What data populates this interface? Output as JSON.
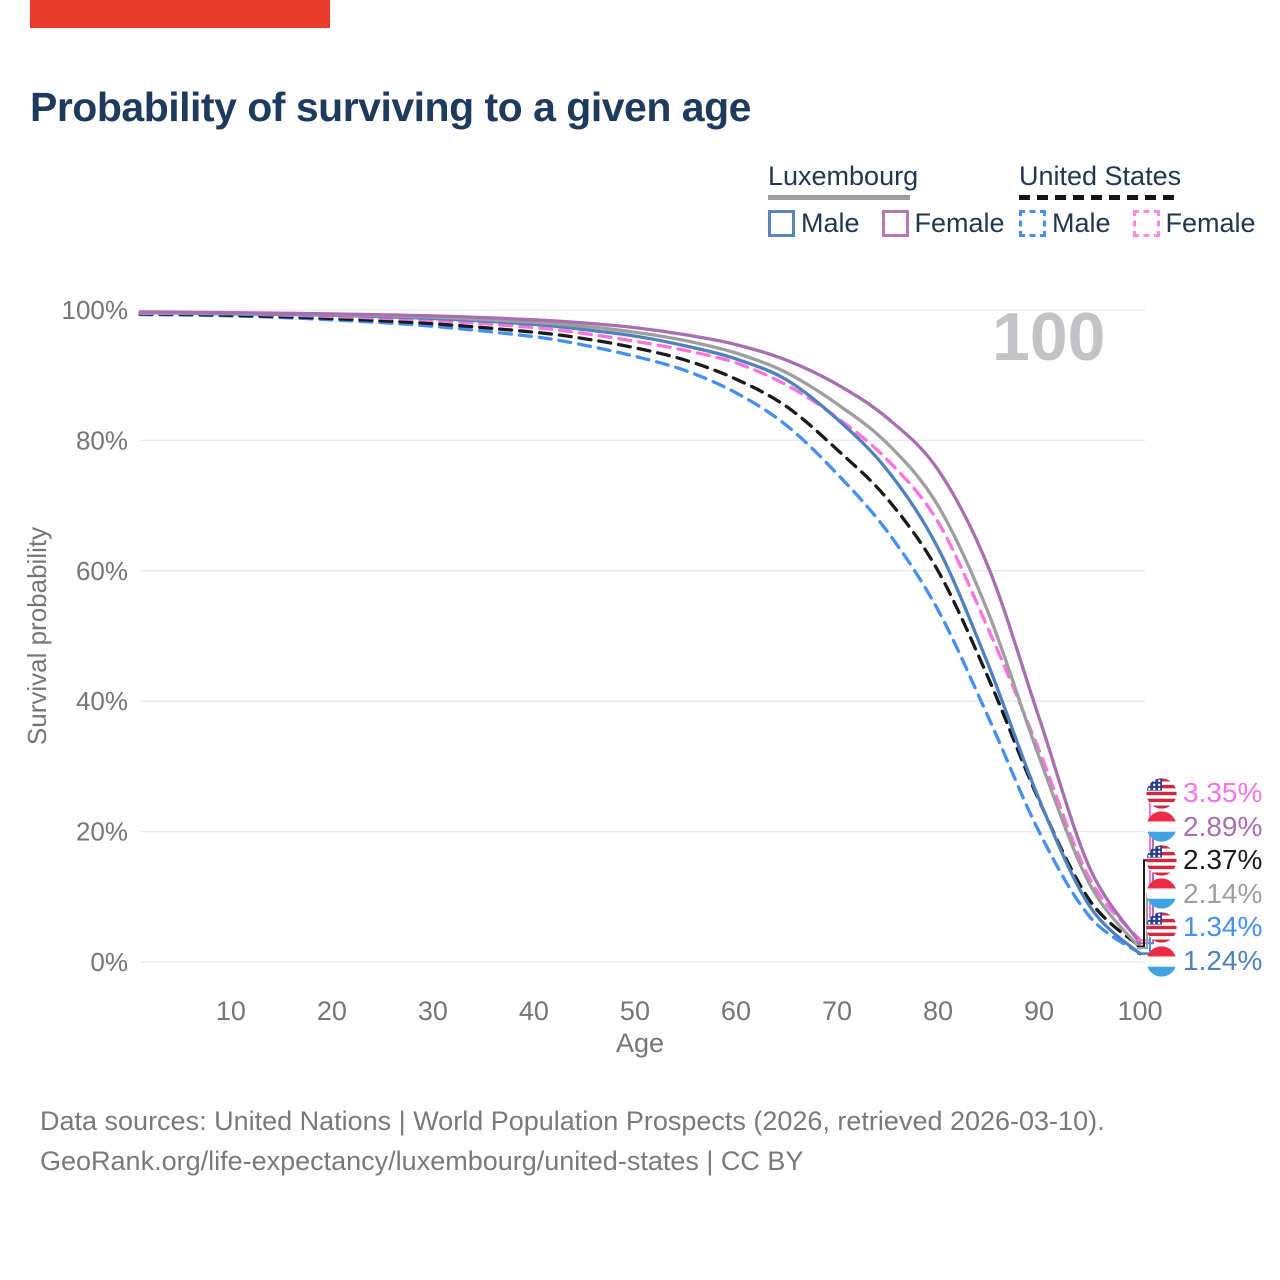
{
  "banner": {
    "color": "#e8392b"
  },
  "header": {
    "title": "Probability of surviving to a given age"
  },
  "legend": {
    "luxembourg": {
      "label": "Luxembourg",
      "male": "Male",
      "female": "Female",
      "male_color": "#4f81bd",
      "female_color": "#a76fb0",
      "total_line_color": "#9e9e9e",
      "total_line_style": "solid"
    },
    "united_states": {
      "label": "United States",
      "male": "Male",
      "female": "Female",
      "male_color": "#448ef4",
      "female_color": "#fb73e0",
      "total_line_color": "#1a1a1a",
      "total_line_style": "dashed"
    }
  },
  "watermark": "100",
  "end_labels": [
    {
      "label": "3.35%",
      "value": 3.35,
      "color": "#fb73e0",
      "flag": "us"
    },
    {
      "label": "2.89%",
      "value": 2.89,
      "color": "#a76fb0",
      "flag": "lu"
    },
    {
      "label": "2.37%",
      "value": 2.37,
      "color": "#1a1a1a",
      "flag": "us"
    },
    {
      "label": "2.14%",
      "value": 2.14,
      "color": "#9e9e9e",
      "flag": "lu"
    },
    {
      "label": "1.34%",
      "value": 1.34,
      "color": "#448ef4",
      "flag": "us"
    },
    {
      "label": "1.24%",
      "value": 1.24,
      "color": "#4f81bd",
      "flag": "lu"
    }
  ],
  "footer": {
    "line1": "Data sources: United Nations | World Population Prospects (2026, retrieved 2026-03-10).",
    "line2": "GeoRank.org/life-expectancy/luxembourg/united-states | CC BY"
  },
  "chart_data": {
    "type": "line",
    "title": "Probability of surviving to a given age",
    "xlabel": "Age",
    "ylabel": "Survival probability",
    "xlim": [
      1,
      100
    ],
    "ylim": [
      0,
      100
    ],
    "grid": "horizontal",
    "x_ticks": [
      10,
      20,
      30,
      40,
      50,
      60,
      70,
      80,
      90,
      100
    ],
    "y_ticks": [
      {
        "value": 0,
        "label": "0%"
      },
      {
        "value": 20,
        "label": "20%"
      },
      {
        "value": 40,
        "label": "40%"
      },
      {
        "value": 60,
        "label": "60%"
      },
      {
        "value": 80,
        "label": "80%"
      },
      {
        "value": 100,
        "label": "100%"
      }
    ],
    "ages": [
      1,
      10,
      20,
      30,
      40,
      45,
      50,
      55,
      60,
      65,
      70,
      75,
      80,
      85,
      90,
      95,
      100
    ],
    "series": [
      {
        "name": "United States Male",
        "style": "dashed",
        "color": "#448ef4",
        "values": [
          99.3,
          99.1,
          98.5,
          97.5,
          95.9,
          94.6,
          92.9,
          90.7,
          87.3,
          82.3,
          74.9,
          66.0,
          54.0,
          37.5,
          20.0,
          7.0,
          1.34
        ]
      },
      {
        "name": "United States",
        "style": "dashed",
        "color": "#1a1a1a",
        "values": [
          99.4,
          99.2,
          98.7,
          97.9,
          96.6,
          95.6,
          94.2,
          92.3,
          89.4,
          85.2,
          78.6,
          71.0,
          60.0,
          43.5,
          24.8,
          9.5,
          2.37
        ]
      },
      {
        "name": "United States Female",
        "style": "dashed",
        "color": "#fb73e0",
        "values": [
          99.5,
          99.4,
          99.0,
          98.4,
          97.3,
          96.4,
          95.2,
          93.8,
          91.9,
          88.5,
          83.5,
          77.0,
          67.5,
          51.0,
          32.5,
          12.8,
          3.35
        ]
      },
      {
        "name": "Luxembourg Male",
        "style": "solid",
        "color": "#4f81bd",
        "values": [
          99.6,
          99.4,
          99.2,
          98.7,
          97.8,
          97.0,
          96.0,
          94.5,
          92.5,
          89.3,
          83.3,
          75.4,
          63.5,
          45.5,
          25.0,
          8.6,
          1.24
        ]
      },
      {
        "name": "Luxembourg",
        "style": "solid",
        "color": "#9e9e9e",
        "values": [
          99.6,
          99.5,
          99.3,
          98.9,
          98.1,
          97.5,
          96.6,
          95.3,
          93.4,
          90.4,
          85.6,
          79.5,
          70.0,
          53.5,
          31.5,
          12.0,
          2.14
        ]
      },
      {
        "name": "Luxembourg Female",
        "style": "solid",
        "color": "#a76fb0",
        "values": [
          99.7,
          99.6,
          99.4,
          99.1,
          98.5,
          98.0,
          97.3,
          96.2,
          94.7,
          92.3,
          88.6,
          83.4,
          75.5,
          60.5,
          37.5,
          14.5,
          2.89
        ]
      }
    ]
  }
}
